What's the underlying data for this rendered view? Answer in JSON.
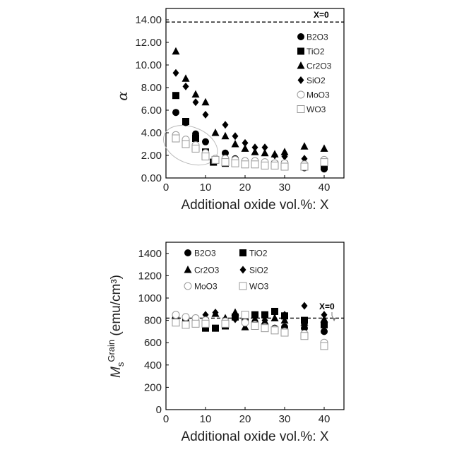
{
  "chart_data": [
    {
      "type": "scatter",
      "xlabel": "Additional oxide vol.%: X",
      "ylabel": "α",
      "xlim": [
        0,
        45
      ],
      "ylim": [
        0,
        15
      ],
      "xticks": [
        "0",
        "10",
        "20",
        "30",
        "40"
      ],
      "yticks": [
        "0.00",
        "2.00",
        "4.00",
        "6.00",
        "8.00",
        "10.00",
        "12.00",
        "14.00"
      ],
      "legend_position": "right",
      "reference_line": {
        "label": "X=0",
        "y": 13.8
      },
      "highlight_ellipse": true,
      "series": [
        {
          "name": "B2O3",
          "marker": "circle",
          "points": [
            [
              2.5,
              5.8
            ],
            [
              5,
              4.9
            ],
            [
              7.5,
              3.9
            ],
            [
              10,
              3.2
            ],
            [
              15,
              2.2
            ],
            [
              17.5,
              1.7
            ],
            [
              20,
              1.4
            ],
            [
              22.5,
              1.3
            ],
            [
              25,
              1.2
            ],
            [
              27.5,
              1.2
            ],
            [
              30,
              1.1
            ],
            [
              35,
              0.9
            ],
            [
              40,
              0.8
            ]
          ]
        },
        {
          "name": "TiO2",
          "marker": "square",
          "points": [
            [
              2.5,
              7.3
            ],
            [
              5,
              5.0
            ],
            [
              7.5,
              3.5
            ],
            [
              10,
              2.3
            ],
            [
              12,
              1.4
            ],
            [
              15,
              1.3
            ],
            [
              17.5,
              1.5
            ],
            [
              20,
              1.3
            ],
            [
              22.5,
              1.3
            ],
            [
              25,
              1.2
            ],
            [
              27.5,
              1.2
            ],
            [
              30,
              1.2
            ],
            [
              35,
              1.0
            ],
            [
              40,
              1.0
            ]
          ]
        },
        {
          "name": "Cr2O3",
          "marker": "triangle",
          "points": [
            [
              2.5,
              11.2
            ],
            [
              5,
              8.8
            ],
            [
              7.5,
              7.4
            ],
            [
              10,
              6.7
            ],
            [
              12.5,
              4.0
            ],
            [
              15,
              3.7
            ],
            [
              17.5,
              3.0
            ],
            [
              20,
              2.6
            ],
            [
              22.5,
              2.3
            ],
            [
              25,
              2.2
            ],
            [
              27.5,
              2.1
            ],
            [
              30,
              2.3
            ],
            [
              35,
              2.8
            ],
            [
              40,
              2.6
            ]
          ]
        },
        {
          "name": "SiO2",
          "marker": "diamond",
          "points": [
            [
              2.5,
              9.3
            ],
            [
              5,
              8.1
            ],
            [
              7.5,
              6.7
            ],
            [
              10,
              5.6
            ],
            [
              15,
              4.7
            ],
            [
              17.5,
              3.7
            ],
            [
              20,
              3.1
            ],
            [
              22.5,
              2.7
            ],
            [
              25,
              2.7
            ],
            [
              27.5,
              2.0
            ],
            [
              30,
              1.9
            ],
            [
              35,
              1.7
            ],
            [
              40,
              1.5
            ]
          ]
        },
        {
          "name": "MoO3",
          "marker": "circle-open",
          "points": [
            [
              2.5,
              3.8
            ],
            [
              5,
              3.4
            ],
            [
              7.5,
              2.9
            ],
            [
              10,
              2.2
            ],
            [
              12.5,
              1.7
            ],
            [
              15,
              1.7
            ],
            [
              17.5,
              1.6
            ],
            [
              20,
              1.5
            ],
            [
              22.5,
              1.5
            ],
            [
              25,
              1.4
            ],
            [
              27.5,
              1.3
            ],
            [
              30,
              1.3
            ],
            [
              35,
              1.2
            ],
            [
              40,
              1.6
            ]
          ]
        },
        {
          "name": "WO3",
          "marker": "square-open",
          "points": [
            [
              2.5,
              3.5
            ],
            [
              5,
              3.0
            ],
            [
              7.5,
              2.6
            ],
            [
              10,
              1.9
            ],
            [
              12.5,
              1.6
            ],
            [
              15,
              1.4
            ],
            [
              17.5,
              1.3
            ],
            [
              20,
              1.2
            ],
            [
              22.5,
              1.2
            ],
            [
              25,
              1.1
            ],
            [
              27.5,
              1.1
            ],
            [
              30,
              1.0
            ],
            [
              35,
              1.0
            ],
            [
              40,
              1.4
            ]
          ]
        }
      ]
    },
    {
      "type": "scatter",
      "xlabel": "Additional oxide vol.%: X",
      "ylabel_main": "M",
      "ylabel_sub": "s",
      "ylabel_sup": "Grain",
      "ylabel_unit": "(emu/cm³)",
      "xlim": [
        0,
        45
      ],
      "ylim": [
        0,
        1500
      ],
      "xticks": [
        "0",
        "10",
        "20",
        "30",
        "40"
      ],
      "yticks": [
        "0",
        "200",
        "400",
        "600",
        "800",
        "1000",
        "1200",
        "1400"
      ],
      "legend_position": "top",
      "reference_line": {
        "label": "X=0",
        "y": 820
      },
      "series": [
        {
          "name": "B2O3",
          "marker": "circle",
          "points": [
            [
              2.5,
              830
            ],
            [
              5,
              820
            ],
            [
              7.5,
              800
            ],
            [
              10,
              790
            ],
            [
              15,
              760
            ],
            [
              20,
              800
            ],
            [
              22.5,
              780
            ],
            [
              25,
              760
            ],
            [
              27.5,
              730
            ],
            [
              30,
              740
            ],
            [
              35,
              730
            ],
            [
              40,
              700
            ]
          ]
        },
        {
          "name": "TiO2",
          "marker": "square",
          "points": [
            [
              2.5,
              810
            ],
            [
              5,
              790
            ],
            [
              7.5,
              780
            ],
            [
              10,
              730
            ],
            [
              12.5,
              730
            ],
            [
              15,
              750
            ],
            [
              17.5,
              830
            ],
            [
              20,
              800
            ],
            [
              22.5,
              850
            ],
            [
              25,
              850
            ],
            [
              27.5,
              880
            ],
            [
              30,
              840
            ],
            [
              35,
              800
            ],
            [
              40,
              760
            ]
          ]
        },
        {
          "name": "Cr2O3",
          "marker": "triangle",
          "points": [
            [
              2.5,
              800
            ],
            [
              5,
              790
            ],
            [
              7.5,
              800
            ],
            [
              10,
              820
            ],
            [
              12.5,
              860
            ],
            [
              15,
              820
            ],
            [
              17.5,
              870
            ],
            [
              20,
              740
            ],
            [
              22.5,
              770
            ],
            [
              25,
              790
            ],
            [
              27.5,
              820
            ],
            [
              30,
              800
            ],
            [
              35,
              780
            ],
            [
              40,
              810
            ]
          ]
        },
        {
          "name": "SiO2",
          "marker": "diamond",
          "points": [
            [
              10,
              850
            ],
            [
              12.5,
              870
            ],
            [
              15,
              810
            ],
            [
              17.5,
              810
            ],
            [
              20,
              790
            ],
            [
              22.5,
              800
            ],
            [
              25,
              800
            ],
            [
              27.5,
              870
            ],
            [
              30,
              850
            ],
            [
              35,
              930
            ],
            [
              40,
              850
            ]
          ]
        },
        {
          "name": "MoO3",
          "marker": "circle-open",
          "points": [
            [
              2.5,
              850
            ],
            [
              5,
              830
            ],
            [
              7.5,
              820
            ],
            [
              10,
              800
            ],
            [
              15,
              790
            ],
            [
              20,
              780
            ],
            [
              22.5,
              760
            ],
            [
              25,
              740
            ],
            [
              27.5,
              720
            ],
            [
              30,
              700
            ],
            [
              35,
              680
            ],
            [
              40,
              600
            ]
          ]
        },
        {
          "name": "WO3",
          "marker": "square-open",
          "points": [
            [
              2.5,
              780
            ],
            [
              5,
              760
            ],
            [
              7.5,
              770
            ],
            [
              10,
              770
            ],
            [
              15,
              770
            ],
            [
              20,
              850
            ],
            [
              22.5,
              750
            ],
            [
              25,
              730
            ],
            [
              27.5,
              710
            ],
            [
              30,
              690
            ],
            [
              35,
              660
            ],
            [
              40,
              570
            ]
          ]
        }
      ]
    }
  ]
}
